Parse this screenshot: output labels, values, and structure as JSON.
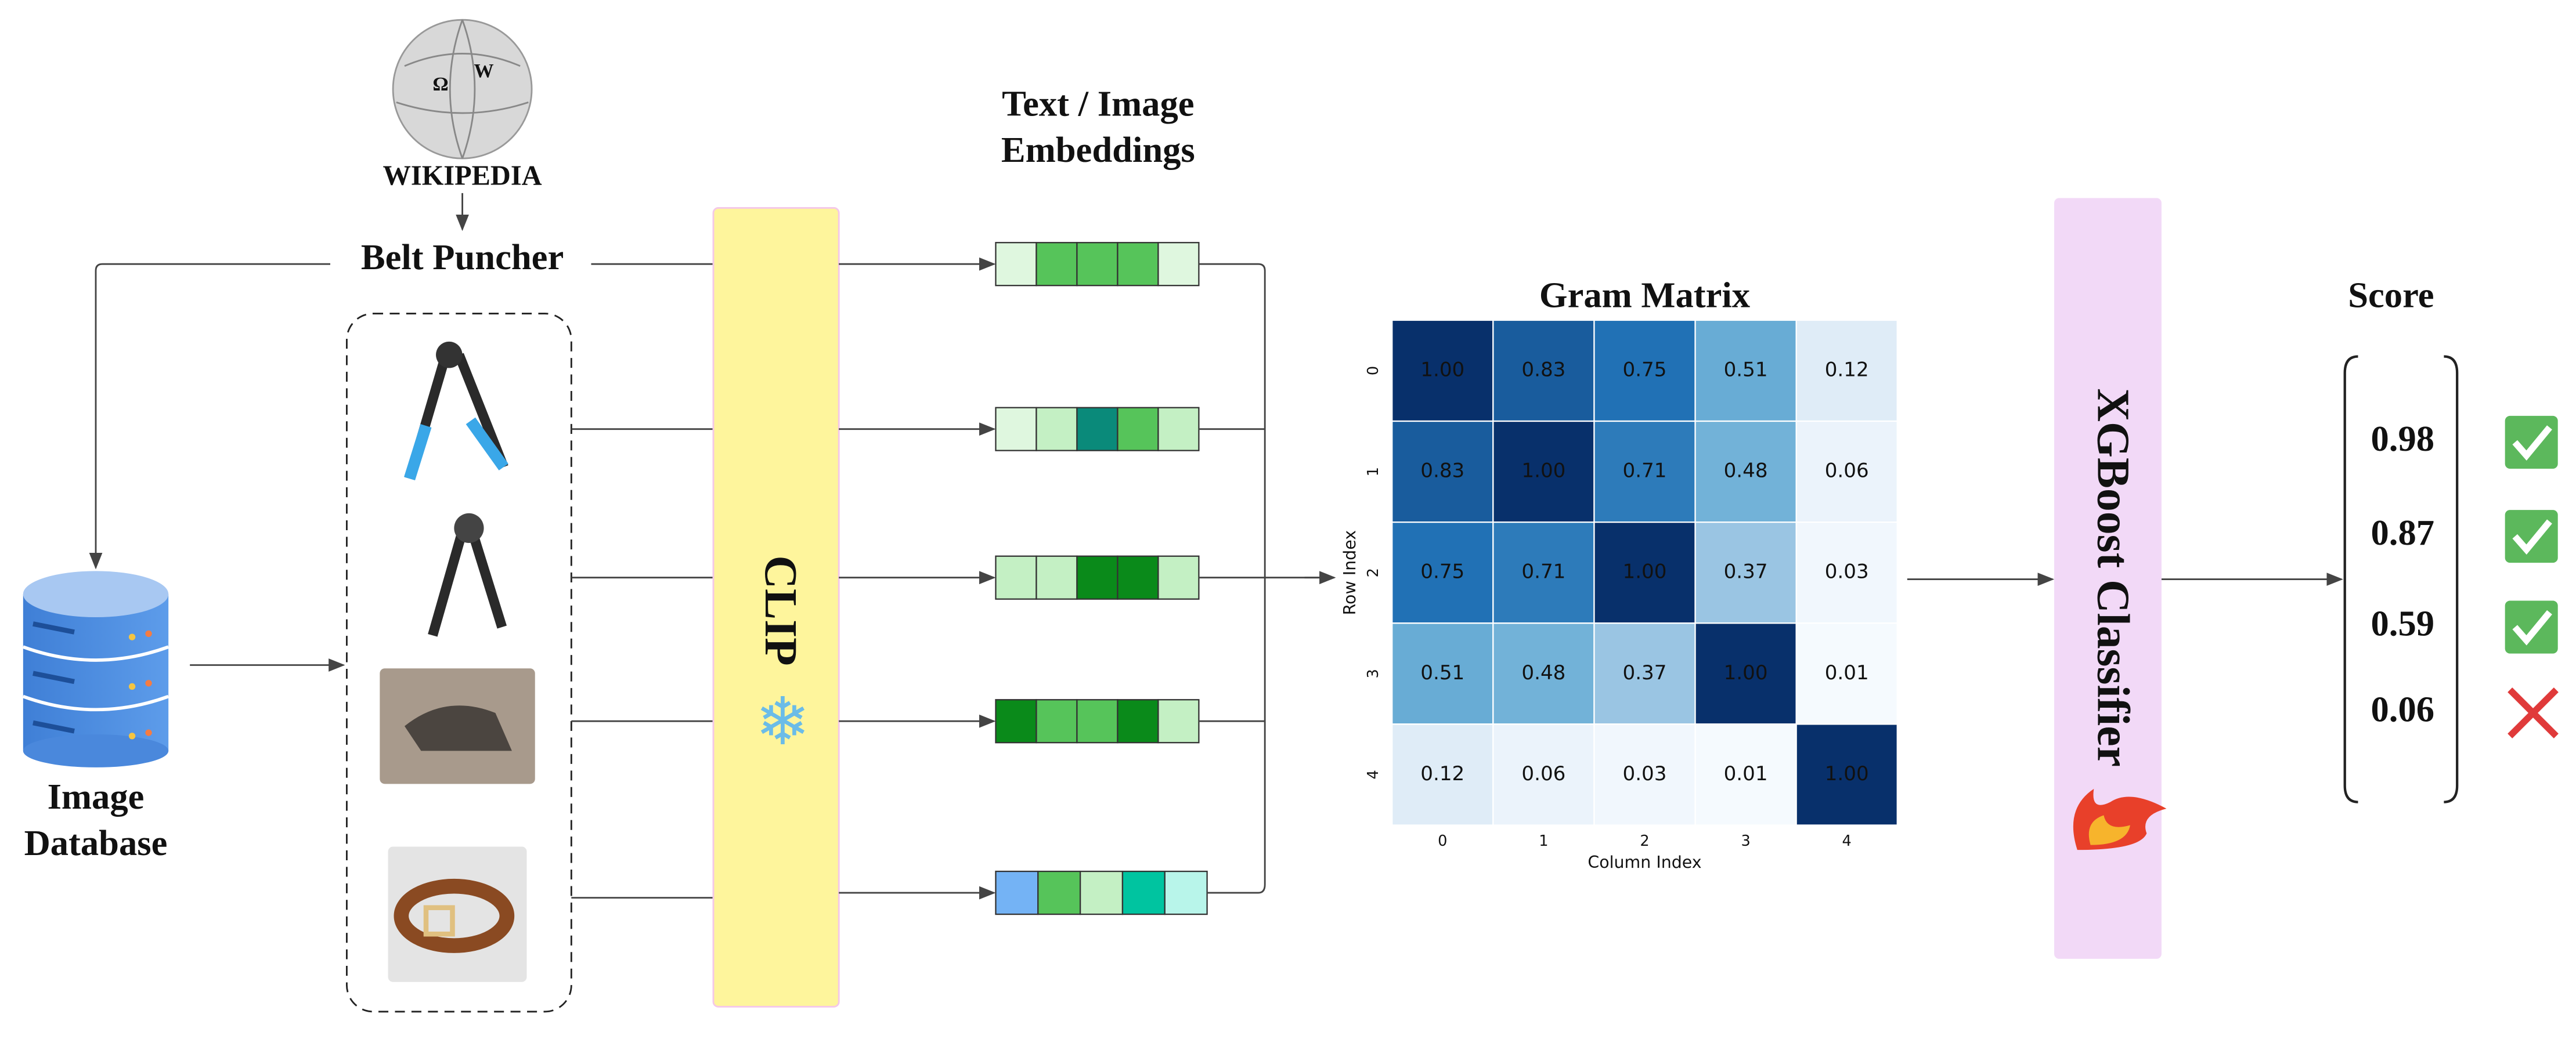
{
  "wikipedia_label": "WIKIPEDIA",
  "query_label": "Belt Puncher",
  "database_label": [
    "Image",
    "Database"
  ],
  "encoder_label": "CLIP",
  "embeddings_title": [
    "Text / Image",
    "Embeddings"
  ],
  "gram_matrix": {
    "title": "Gram Matrix",
    "x_label": "Column Index",
    "y_label": "Row Index",
    "row_ticks": [
      "0",
      "1",
      "2",
      "3",
      "4"
    ],
    "col_ticks": [
      "0",
      "1",
      "2",
      "3",
      "4"
    ],
    "values": [
      [
        "1.00",
        "0.83",
        "0.75",
        "0.51",
        "0.12"
      ],
      [
        "0.83",
        "1.00",
        "0.71",
        "0.48",
        "0.06"
      ],
      [
        "0.75",
        "0.71",
        "1.00",
        "0.37",
        "0.03"
      ],
      [
        "0.51",
        "0.48",
        "0.37",
        "1.00",
        "0.01"
      ],
      [
        "0.12",
        "0.06",
        "0.03",
        "0.01",
        "1.00"
      ]
    ]
  },
  "classifier_label": "XGBoost Classifier",
  "score_title": "Score",
  "scores": [
    "0.98",
    "0.87",
    "0.59",
    "0.06"
  ]
}
